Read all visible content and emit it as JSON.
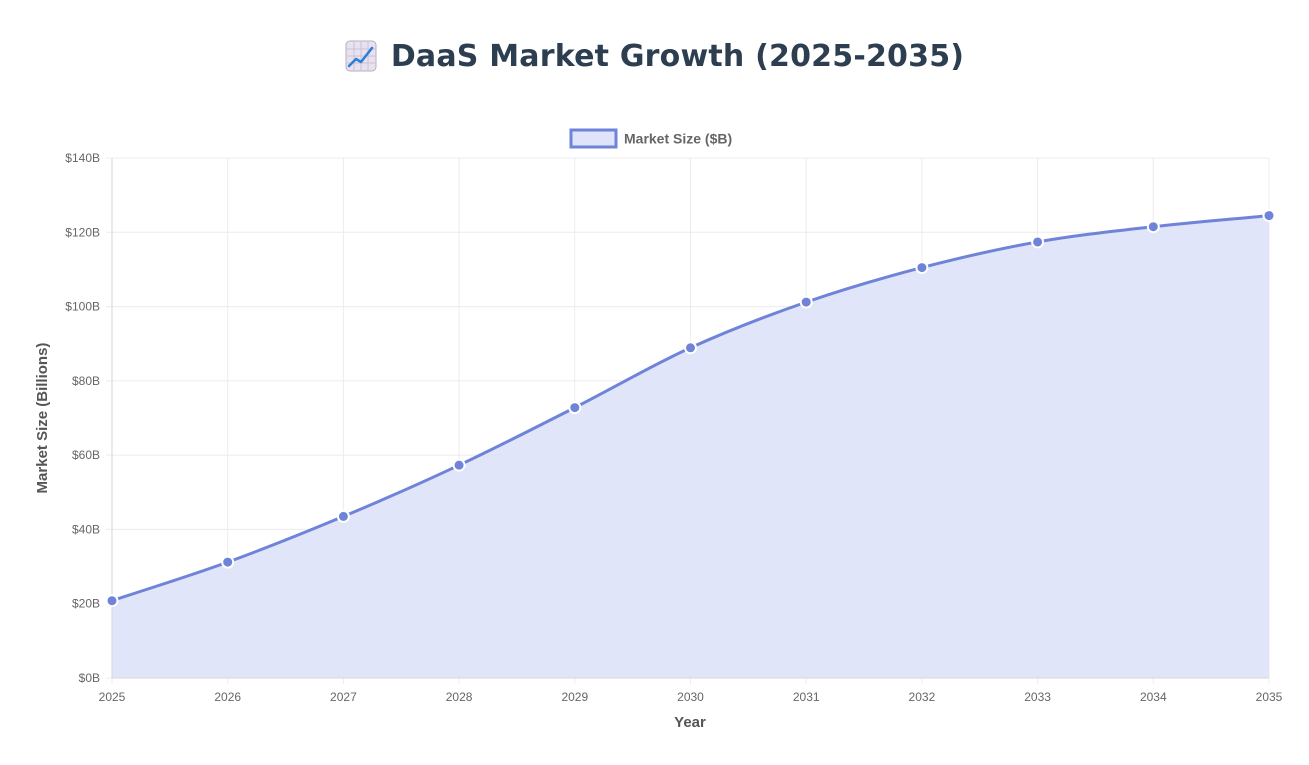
{
  "page_title": "DaaS Market Growth (2025-2035)",
  "title_icon": "chart-increasing-icon",
  "chart_data": {
    "type": "area",
    "title": "DaaS Market Growth (2025-2035)",
    "xlabel": "Year",
    "ylabel": "Market Size (Billions)",
    "x": [
      "2025",
      "2026",
      "2027",
      "2028",
      "2029",
      "2030",
      "2031",
      "2032",
      "2033",
      "2034",
      "2035"
    ],
    "series": [
      {
        "name": "Market Size ($B)",
        "values": [
          20.8,
          31.2,
          43.5,
          57.3,
          72.8,
          88.9,
          101.2,
          110.5,
          117.4,
          121.5,
          124.5
        ]
      }
    ],
    "ylim": [
      0,
      140
    ],
    "y_ticks": [
      0,
      20,
      40,
      60,
      80,
      100,
      120,
      140
    ],
    "y_tick_labels": [
      "$0B",
      "$20B",
      "$40B",
      "$60B",
      "$80B",
      "$100B",
      "$120B",
      "$140B"
    ],
    "grid": true,
    "legend_position": "top-center",
    "colors": {
      "line": "#6f84d8",
      "fill": "#dfe4fa",
      "grid": "#ececec"
    }
  }
}
